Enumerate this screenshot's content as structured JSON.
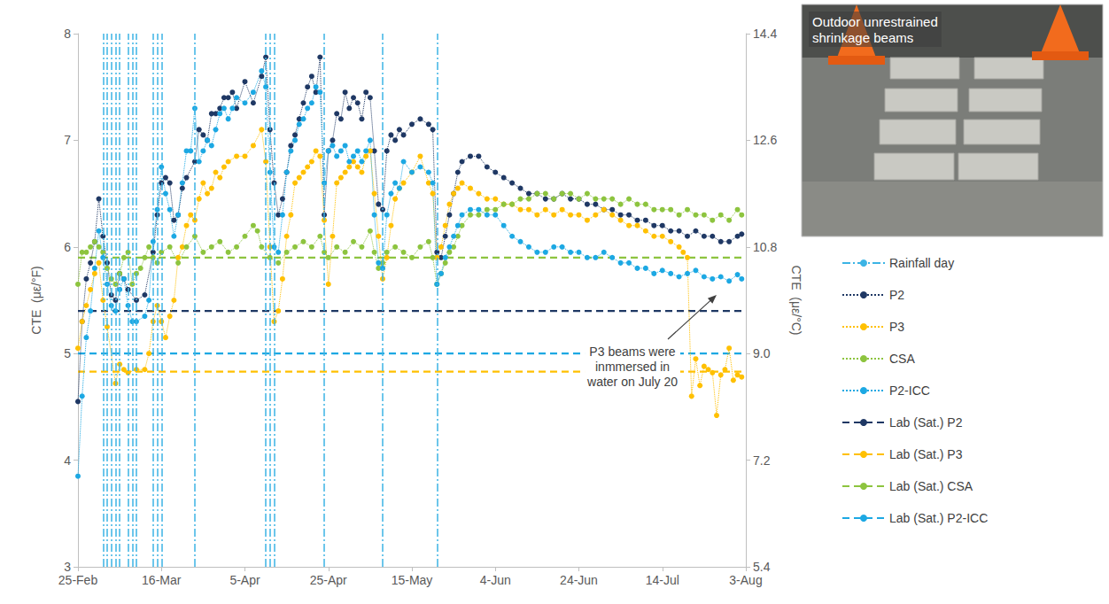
{
  "chart_data": {
    "type": "line",
    "y_label": "CTE  (με/°F)",
    "y2_label": "CTE  (με/°C)",
    "xlim": [
      0,
      160
    ],
    "xticks": [
      {
        "value": 0,
        "label": "25-Feb"
      },
      {
        "value": 20,
        "label": "16-Mar"
      },
      {
        "value": 40,
        "label": "5-Apr"
      },
      {
        "value": 60,
        "label": "25-Apr"
      },
      {
        "value": 80,
        "label": "15-May"
      },
      {
        "value": 100,
        "label": "4-Jun"
      },
      {
        "value": 120,
        "label": "24-Jun"
      },
      {
        "value": 140,
        "label": "14-Jul"
      },
      {
        "value": 160,
        "label": "3-Aug"
      }
    ],
    "ylim": [
      3,
      8
    ],
    "yticks": [
      3,
      4,
      5,
      6,
      7,
      8
    ],
    "y2lim": [
      5.4,
      14.4
    ],
    "y2ticks": [
      5.4,
      7.2,
      {
        "value": 9,
        "label": "9.0"
      },
      10.8,
      12.6,
      14.4
    ],
    "grid": false,
    "legend": "right",
    "series": [
      {
        "name": "Rainfall day",
        "type": "vline",
        "color": "#3cb4e5",
        "line_style": "dashdot",
        "x": [
          6,
          7,
          8,
          9,
          10,
          12,
          13,
          14,
          18,
          19,
          20,
          28,
          45,
          46,
          47,
          59,
          73,
          86
        ]
      },
      {
        "name": "P2",
        "color": "#1f3864",
        "marker": "circle",
        "line_style": "dotted",
        "x": [
          0,
          1,
          2,
          3,
          4,
          5,
          6,
          7,
          8,
          9,
          10,
          11,
          12,
          14,
          16,
          18,
          19,
          20,
          21,
          22,
          23,
          24,
          25,
          26,
          28,
          29,
          30,
          31,
          32,
          33,
          34,
          35,
          36,
          37,
          38,
          40,
          42,
          44,
          45,
          46,
          47,
          48,
          49,
          50,
          51,
          52,
          53,
          54,
          55,
          56,
          57,
          58,
          59,
          60,
          61,
          62,
          63,
          64,
          65,
          66,
          67,
          68,
          69,
          70,
          71,
          72,
          73,
          74,
          75,
          76,
          77,
          78,
          80,
          82,
          84,
          85,
          86,
          87,
          88,
          89,
          90,
          91,
          92,
          94,
          96,
          98,
          100,
          102,
          104,
          106,
          108,
          110,
          112,
          114,
          116,
          118,
          120,
          122,
          124,
          126,
          128,
          130,
          132,
          134,
          136,
          138,
          140,
          142,
          144,
          146,
          148,
          150,
          152,
          154,
          156,
          158,
          159
        ],
        "values": [
          4.55,
          5.3,
          5.7,
          5.85,
          6.05,
          6.45,
          6.1,
          5.85,
          5.55,
          5.5,
          5.75,
          5.7,
          5.6,
          5.5,
          5.55,
          5.95,
          6.3,
          6.6,
          6.65,
          6.6,
          6.25,
          6.3,
          6.55,
          6.65,
          6.8,
          7.1,
          7.05,
          7.0,
          7.25,
          7.25,
          7.3,
          7.4,
          7.4,
          7.45,
          7.3,
          7.55,
          7.35,
          7.6,
          7.78,
          7.1,
          6.6,
          6.3,
          6.45,
          6.7,
          6.95,
          7.05,
          7.2,
          7.35,
          7.5,
          7.6,
          7.45,
          7.78,
          6.3,
          6.9,
          7.0,
          7.25,
          7.2,
          7.45,
          7.3,
          7.4,
          7.35,
          7.2,
          7.45,
          7.4,
          6.9,
          6.4,
          6.35,
          6.9,
          7.05,
          7.0,
          7.1,
          7.05,
          7.15,
          7.2,
          7.15,
          7.1,
          5.95,
          5.9,
          6.1,
          6.3,
          6.5,
          6.7,
          6.8,
          6.85,
          6.85,
          6.75,
          6.7,
          6.65,
          6.6,
          6.55,
          6.5,
          6.5,
          6.45,
          6.45,
          6.5,
          6.45,
          6.45,
          6.4,
          6.4,
          6.35,
          6.35,
          6.3,
          6.3,
          6.25,
          6.25,
          6.2,
          6.2,
          6.15,
          6.15,
          6.1,
          6.15,
          6.1,
          6.1,
          6.05,
          6.05,
          6.1,
          6.12
        ]
      },
      {
        "name": "P3",
        "color": "#ffc000",
        "marker": "circle",
        "line_style": "dotted",
        "x": [
          0,
          1,
          2,
          3,
          4,
          5,
          6,
          7,
          9,
          10,
          11,
          12,
          14,
          16,
          17,
          18,
          19,
          20,
          21,
          22,
          23,
          24,
          25,
          26,
          27,
          28,
          29,
          30,
          31,
          32,
          33,
          34,
          35,
          36,
          38,
          40,
          42,
          44,
          45,
          46,
          47,
          48,
          49,
          50,
          51,
          52,
          53,
          54,
          55,
          56,
          57,
          58,
          59,
          60,
          61,
          62,
          63,
          64,
          65,
          66,
          67,
          68,
          69,
          70,
          71,
          72,
          73,
          74,
          75,
          76,
          77,
          78,
          80,
          82,
          84,
          85,
          86,
          87,
          88,
          89,
          90,
          91,
          92,
          94,
          96,
          98,
          100,
          102,
          104,
          106,
          108,
          110,
          112,
          114,
          116,
          118,
          120,
          122,
          124,
          126,
          128,
          130,
          132,
          134,
          136,
          138,
          140,
          142,
          144,
          145,
          146,
          147,
          148,
          149,
          150,
          151,
          152,
          153,
          154,
          155,
          156,
          157,
          158,
          159
        ],
        "values": [
          5.05,
          5.3,
          5.45,
          5.6,
          5.75,
          5.85,
          5.5,
          5.25,
          4.72,
          4.9,
          4.85,
          4.82,
          4.85,
          4.85,
          5.0,
          5.3,
          5.45,
          5.3,
          5.15,
          5.35,
          5.5,
          5.9,
          6.0,
          6.2,
          6.3,
          6.25,
          6.45,
          6.6,
          6.5,
          6.55,
          6.7,
          6.65,
          6.75,
          6.8,
          6.85,
          6.85,
          6.95,
          7.1,
          6.8,
          6.0,
          5.3,
          5.4,
          5.7,
          6.1,
          6.3,
          6.6,
          6.65,
          6.7,
          6.75,
          6.8,
          6.9,
          6.85,
          6.25,
          5.65,
          6.1,
          6.6,
          6.65,
          6.7,
          6.75,
          6.8,
          6.75,
          6.7,
          6.85,
          6.9,
          6.5,
          6.1,
          5.7,
          5.9,
          6.2,
          6.45,
          6.55,
          6.6,
          6.7,
          6.85,
          6.6,
          6.5,
          5.9,
          6.0,
          6.2,
          6.4,
          6.5,
          6.55,
          6.6,
          6.55,
          6.5,
          6.45,
          6.45,
          6.4,
          6.4,
          6.35,
          6.35,
          6.3,
          6.35,
          6.3,
          6.35,
          6.3,
          6.3,
          6.25,
          6.3,
          6.35,
          6.3,
          6.25,
          6.2,
          6.2,
          6.15,
          6.1,
          6.1,
          6.05,
          6.0,
          5.95,
          5.9,
          4.6,
          4.95,
          4.7,
          4.88,
          4.85,
          4.82,
          4.42,
          4.8,
          4.85,
          5.05,
          4.75,
          4.8,
          4.78
        ]
      },
      {
        "name": "CSA",
        "color": "#8dc43f",
        "marker": "circle",
        "line_style": "dotted",
        "x": [
          0,
          1,
          2,
          3,
          4,
          5,
          6,
          7,
          8,
          9,
          10,
          11,
          12,
          13,
          14,
          15,
          16,
          17,
          18,
          19,
          20,
          22,
          24,
          26,
          28,
          30,
          32,
          34,
          36,
          38,
          40,
          42,
          43,
          44,
          46,
          48,
          50,
          52,
          54,
          56,
          58,
          59,
          60,
          62,
          64,
          66,
          68,
          70,
          71,
          72,
          73,
          74,
          76,
          78,
          80,
          82,
          84,
          85,
          86,
          87,
          88,
          89,
          90,
          91,
          92,
          94,
          96,
          98,
          100,
          102,
          104,
          106,
          108,
          110,
          112,
          114,
          116,
          118,
          120,
          122,
          124,
          126,
          128,
          130,
          132,
          134,
          136,
          138,
          140,
          142,
          144,
          146,
          148,
          150,
          152,
          154,
          156,
          158,
          159
        ],
        "values": [
          5.65,
          5.95,
          5.95,
          6.0,
          6.05,
          6.0,
          5.95,
          5.8,
          5.7,
          5.65,
          5.75,
          5.9,
          5.95,
          5.65,
          5.75,
          5.8,
          5.9,
          6.0,
          5.9,
          5.85,
          5.95,
          6.0,
          5.85,
          6.0,
          6.1,
          5.95,
          6.0,
          6.05,
          5.95,
          6.0,
          6.1,
          6.2,
          6.15,
          6.0,
          5.9,
          5.85,
          5.95,
          6.0,
          6.05,
          6.0,
          6.1,
          5.95,
          5.9,
          6.0,
          5.95,
          6.05,
          6.0,
          6.15,
          5.95,
          5.8,
          5.85,
          5.95,
          6.0,
          5.95,
          5.9,
          6.0,
          6.05,
          5.9,
          5.65,
          5.75,
          5.85,
          5.95,
          6.0,
          6.1,
          6.2,
          6.3,
          6.3,
          6.35,
          6.35,
          6.4,
          6.4,
          6.45,
          6.45,
          6.5,
          6.5,
          6.45,
          6.5,
          6.5,
          6.45,
          6.5,
          6.45,
          6.45,
          6.45,
          6.4,
          6.45,
          6.4,
          6.4,
          6.35,
          6.35,
          6.35,
          6.3,
          6.35,
          6.3,
          6.3,
          6.25,
          6.3,
          6.25,
          6.35,
          6.3
        ]
      },
      {
        "name": "P2-ICC",
        "color": "#1ca8e3",
        "marker": "circle",
        "line_style": "dotted",
        "x": [
          0,
          1,
          2,
          3,
          4,
          5,
          6,
          7,
          8,
          9,
          10,
          11,
          12,
          13,
          14,
          16,
          17,
          18,
          19,
          20,
          21,
          22,
          23,
          24,
          25,
          26,
          27,
          28,
          29,
          30,
          31,
          32,
          33,
          34,
          35,
          36,
          37,
          38,
          40,
          42,
          44,
          45,
          46,
          47,
          48,
          49,
          50,
          51,
          52,
          53,
          54,
          55,
          56,
          57,
          58,
          59,
          60,
          61,
          62,
          63,
          64,
          65,
          66,
          67,
          68,
          69,
          70,
          71,
          72,
          73,
          74,
          75,
          76,
          77,
          78,
          80,
          82,
          84,
          85,
          86,
          87,
          88,
          89,
          90,
          91,
          92,
          94,
          96,
          98,
          100,
          102,
          104,
          106,
          108,
          110,
          112,
          114,
          116,
          118,
          120,
          122,
          124,
          126,
          128,
          130,
          132,
          134,
          136,
          138,
          140,
          142,
          144,
          146,
          148,
          150,
          152,
          154,
          156,
          158,
          159
        ],
        "values": [
          3.85,
          4.6,
          5.15,
          5.4,
          5.8,
          6.15,
          5.9,
          5.65,
          5.45,
          5.4,
          5.6,
          5.7,
          5.45,
          5.3,
          5.3,
          5.35,
          5.5,
          6.05,
          6.35,
          6.75,
          6.5,
          6.35,
          6.1,
          6.3,
          6.6,
          6.9,
          6.9,
          7.3,
          6.8,
          6.9,
          7.0,
          6.95,
          7.1,
          7.25,
          7.3,
          7.2,
          7.3,
          7.4,
          7.35,
          7.45,
          7.65,
          7.5,
          6.7,
          6.0,
          5.95,
          6.3,
          6.7,
          6.9,
          7.0,
          7.15,
          7.2,
          7.3,
          7.35,
          7.5,
          7.45,
          6.6,
          6.9,
          6.95,
          6.85,
          6.9,
          6.95,
          6.8,
          6.85,
          6.9,
          6.8,
          6.9,
          7.0,
          6.3,
          5.85,
          5.8,
          6.3,
          6.5,
          6.6,
          6.55,
          6.8,
          6.7,
          6.75,
          6.7,
          6.6,
          5.65,
          5.75,
          5.9,
          6.0,
          6.1,
          6.2,
          6.3,
          6.35,
          6.35,
          6.3,
          6.3,
          6.2,
          6.1,
          6.05,
          6.0,
          5.95,
          5.95,
          6.0,
          6.0,
          5.95,
          5.95,
          5.9,
          5.9,
          5.95,
          5.9,
          5.85,
          5.85,
          5.8,
          5.8,
          5.75,
          5.78,
          5.75,
          5.72,
          5.75,
          5.78,
          5.72,
          5.7,
          5.72,
          5.68,
          5.74,
          5.7
        ]
      },
      {
        "name": "Lab (Sat.) P2",
        "color": "#1f3864",
        "marker": "none",
        "line_style": "dashed",
        "x": [
          0,
          160
        ],
        "values": [
          5.4,
          5.4
        ]
      },
      {
        "name": "Lab (Sat.) P3",
        "color": "#ffc000",
        "marker": "none",
        "line_style": "dashed",
        "x": [
          0,
          160
        ],
        "values": [
          4.83,
          4.83
        ]
      },
      {
        "name": "Lab (Sat.) CSA",
        "color": "#8dc43f",
        "marker": "none",
        "line_style": "dashed",
        "x": [
          0,
          160
        ],
        "values": [
          5.9,
          5.9
        ]
      },
      {
        "name": "Lab (Sat.) P2-ICC",
        "color": "#1ca8e3",
        "marker": "none",
        "line_style": "dashed",
        "x": [
          0,
          160
        ],
        "values": [
          5.0,
          5.0
        ]
      }
    ],
    "annotation": {
      "text": "P3 beams were\ninmmersed in\nwater on July 20",
      "xy": [
        153,
        5.55
      ]
    },
    "inset_label": "Outdoor unrestrained shrinkage beams"
  }
}
